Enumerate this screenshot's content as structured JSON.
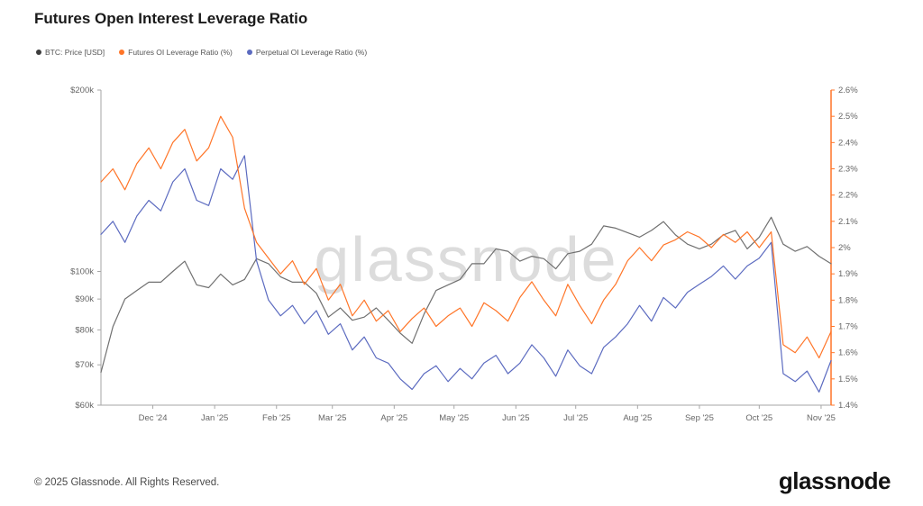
{
  "page": {
    "title": "Futures Open Interest Leverage Ratio",
    "watermark": "glassnode",
    "footer_copyright": "© 2025 Glassnode. All Rights Reserved.",
    "footer_logo": "glassnode"
  },
  "legend": {
    "items": [
      {
        "label": "BTC: Price [USD]",
        "color": "#3d3d3d"
      },
      {
        "label": "Futures OI Leverage Ratio (%)",
        "color": "#ff7528"
      },
      {
        "label": "Perpetual OI Leverage Ratio (%)",
        "color": "#5c6bc0"
      }
    ]
  },
  "chart_data": {
    "type": "line",
    "title": "Futures Open Interest Leverage Ratio",
    "x_unit": "days since 2024-11-05",
    "x_days": [
      0,
      6,
      12,
      18,
      24,
      30,
      36,
      42,
      48,
      54,
      60,
      66,
      72,
      78,
      84,
      90,
      96,
      102,
      108,
      114,
      120,
      126,
      132,
      138,
      144,
      150,
      156,
      162,
      168,
      174,
      180,
      186,
      192,
      198,
      204,
      210,
      216,
      222,
      228,
      234,
      240,
      246,
      252,
      258,
      264,
      270,
      276,
      282,
      288,
      294,
      300,
      306,
      312,
      318,
      324,
      330,
      336,
      342,
      348,
      354,
      360,
      366
    ],
    "series": [
      {
        "name": "BTC: Price [USD]",
        "axis": "left",
        "color": "#707070",
        "values": [
          68,
          81,
          90,
          93,
          96,
          96,
          100,
          104,
          95,
          94,
          99,
          95,
          97,
          105,
          103,
          98,
          96,
          96,
          92,
          84,
          87,
          83,
          84,
          87,
          83,
          79,
          76,
          85,
          93,
          95,
          97,
          103,
          103,
          109,
          108,
          104,
          106,
          105,
          101,
          107,
          108,
          111,
          119,
          118,
          116,
          114,
          117,
          121,
          115,
          111,
          109,
          111,
          115,
          117,
          109,
          114,
          123,
          111,
          108,
          110,
          106,
          103
        ]
      },
      {
        "name": "Futures OI Leverage Ratio (%)",
        "axis": "right",
        "color": "#ff7528",
        "values": [
          2.25,
          2.3,
          2.22,
          2.32,
          2.38,
          2.3,
          2.4,
          2.45,
          2.33,
          2.38,
          2.5,
          2.42,
          2.15,
          2.02,
          1.96,
          1.9,
          1.95,
          1.86,
          1.92,
          1.8,
          1.86,
          1.74,
          1.8,
          1.72,
          1.76,
          1.68,
          1.73,
          1.77,
          1.7,
          1.74,
          1.77,
          1.7,
          1.79,
          1.76,
          1.72,
          1.81,
          1.87,
          1.8,
          1.74,
          1.86,
          1.78,
          1.71,
          1.8,
          1.86,
          1.95,
          2.0,
          1.95,
          2.01,
          2.03,
          2.06,
          2.04,
          2.0,
          2.05,
          2.02,
          2.06,
          2.0,
          2.06,
          1.63,
          1.6,
          1.66,
          1.58,
          1.68
        ]
      },
      {
        "name": "Perpetual OI Leverage Ratio (%)",
        "axis": "right",
        "color": "#5c6bc0",
        "values": [
          2.05,
          2.1,
          2.02,
          2.12,
          2.18,
          2.14,
          2.25,
          2.3,
          2.18,
          2.16,
          2.3,
          2.26,
          2.35,
          1.95,
          1.8,
          1.74,
          1.78,
          1.71,
          1.76,
          1.67,
          1.71,
          1.61,
          1.66,
          1.58,
          1.56,
          1.5,
          1.46,
          1.52,
          1.55,
          1.49,
          1.54,
          1.5,
          1.56,
          1.59,
          1.52,
          1.56,
          1.63,
          1.58,
          1.51,
          1.61,
          1.55,
          1.52,
          1.62,
          1.66,
          1.71,
          1.78,
          1.72,
          1.81,
          1.77,
          1.83,
          1.86,
          1.89,
          1.93,
          1.88,
          1.93,
          1.96,
          2.02,
          1.52,
          1.49,
          1.53,
          1.45,
          1.57
        ]
      }
    ],
    "left_axis": {
      "scale": "log",
      "unit": "USD (k)",
      "min": 60,
      "max": 200,
      "ticks": [
        {
          "label": "$200k",
          "v": 200
        },
        {
          "label": "$100k",
          "v": 100
        },
        {
          "label": "$90k",
          "v": 90
        },
        {
          "label": "$80k",
          "v": 80
        },
        {
          "label": "$70k",
          "v": 70
        },
        {
          "label": "$60k",
          "v": 60
        }
      ]
    },
    "right_axis": {
      "scale": "linear",
      "unit": "%",
      "min": 1.4,
      "max": 2.6,
      "ticks": [
        {
          "label": "2.6%",
          "v": 2.6
        },
        {
          "label": "2.5%",
          "v": 2.5
        },
        {
          "label": "2.4%",
          "v": 2.4
        },
        {
          "label": "2.3%",
          "v": 2.3
        },
        {
          "label": "2.2%",
          "v": 2.2
        },
        {
          "label": "2.1%",
          "v": 2.1
        },
        {
          "label": "2%",
          "v": 2.0
        },
        {
          "label": "1.9%",
          "v": 1.9
        },
        {
          "label": "1.8%",
          "v": 1.8
        },
        {
          "label": "1.7%",
          "v": 1.7
        },
        {
          "label": "1.6%",
          "v": 1.6
        },
        {
          "label": "1.5%",
          "v": 1.5
        },
        {
          "label": "1.4%",
          "v": 1.4
        }
      ]
    },
    "x_ticks": [
      {
        "label": "Dec '24",
        "day": 26
      },
      {
        "label": "Jan '25",
        "day": 57
      },
      {
        "label": "Feb '25",
        "day": 88
      },
      {
        "label": "Mar '25",
        "day": 116
      },
      {
        "label": "Apr '25",
        "day": 147
      },
      {
        "label": "May '25",
        "day": 177
      },
      {
        "label": "Jun '25",
        "day": 208
      },
      {
        "label": "Jul '25",
        "day": 238
      },
      {
        "label": "Aug '25",
        "day": 269
      },
      {
        "label": "Sep '25",
        "day": 300
      },
      {
        "label": "Oct '25",
        "day": 330
      },
      {
        "label": "Nov '25",
        "day": 361
      }
    ],
    "legend_position": "top-left",
    "grid": false
  }
}
